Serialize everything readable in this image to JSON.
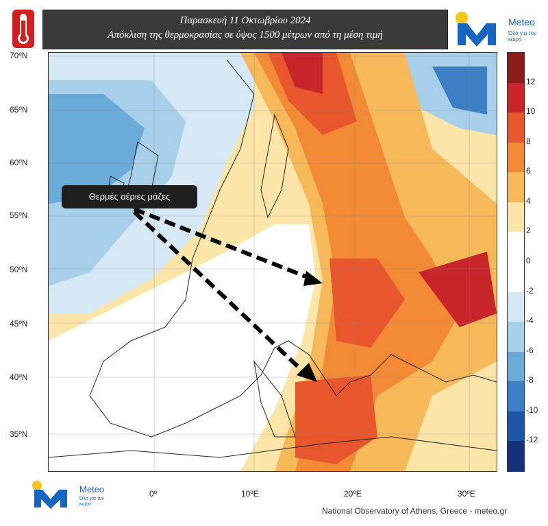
{
  "header": {
    "title_line1": "Παρασκευή 11 Οκτωβρίου 2024",
    "title_line2": "Απόκλιση της θερμοκρασίας σε ύψος 1500 μέτρων από τη μέση τιμή",
    "logo_text": "Meteo",
    "logo_tagline": "Όλα για τον καιρό"
  },
  "map": {
    "latitude_labels": [
      "70ºN",
      "65ºN",
      "60ºN",
      "55ºN",
      "50ºN",
      "45ºN",
      "40ºN",
      "35ºN"
    ],
    "longitude_labels": [
      "0º",
      "10ºE",
      "20ºE",
      "30ºE"
    ],
    "callout": "Θερμές αέριες μάζες",
    "colorbar": {
      "labels": [
        "12",
        "10",
        "8",
        "6",
        "4",
        "2",
        "0",
        "-2",
        "-4",
        "-6",
        "-8",
        "-10",
        "-12"
      ],
      "colors": [
        "#8b1a1a",
        "#c8252a",
        "#e8562d",
        "#f28a35",
        "#f7b85a",
        "#fbe5a8",
        "#ffffff",
        "#ffffff",
        "#d6e8f4",
        "#a7cfe9",
        "#6aaad9",
        "#3c7fc4",
        "#1f57a8",
        "#14307a"
      ]
    }
  },
  "footer": {
    "logo_text": "Meteo",
    "logo_tagline": "Όλα για τον καιρό",
    "credit": "National Observatory of Athens, Greece - meteo.gr"
  }
}
